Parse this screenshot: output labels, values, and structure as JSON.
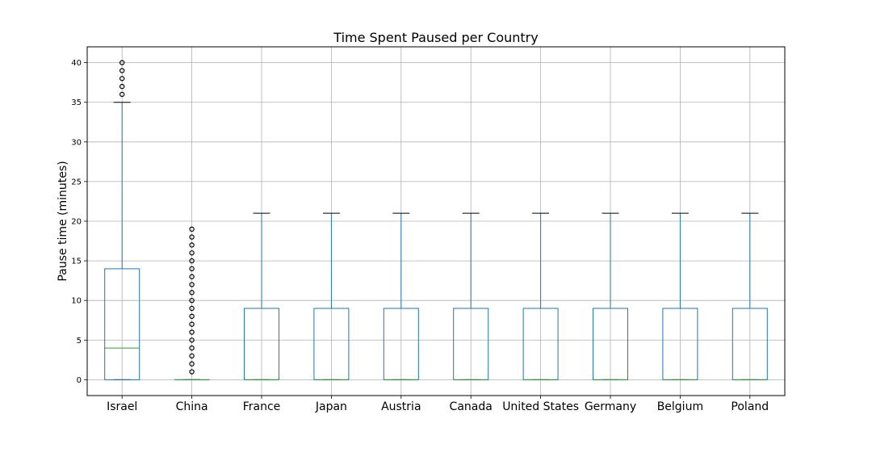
{
  "chart_data": {
    "type": "box",
    "title": "Time Spent Paused per Country",
    "xlabel": "",
    "ylabel": "Pause time (minutes)",
    "ylim": [
      -2,
      42
    ],
    "yticks": [
      0,
      5,
      10,
      15,
      20,
      25,
      30,
      35,
      40
    ],
    "grid": true,
    "colors": {
      "box": "#1f77b4",
      "median": "#2ca02c",
      "cap": "#000000",
      "flier": "#000000",
      "grid": "#b0b0b0"
    },
    "categories": [
      "Israel",
      "China",
      "France",
      "Japan",
      "Austria",
      "Canada",
      "United States",
      "Germany",
      "Belgium",
      "Poland"
    ],
    "boxes": [
      {
        "whislo": 0,
        "q1": 0,
        "med": 4,
        "q3": 14,
        "whishi": 35,
        "fliers": [
          36,
          37,
          38,
          39,
          40
        ]
      },
      {
        "whislo": 0,
        "q1": 0,
        "med": 0,
        "q3": 0,
        "whishi": 0,
        "fliers": [
          1,
          2,
          3,
          4,
          5,
          6,
          7,
          8,
          9,
          10,
          11,
          12,
          13,
          14,
          15,
          16,
          17,
          18,
          19
        ]
      },
      {
        "whislo": 0,
        "q1": 0,
        "med": 0,
        "q3": 9,
        "whishi": 21,
        "fliers": []
      },
      {
        "whislo": 0,
        "q1": 0,
        "med": 0,
        "q3": 9,
        "whishi": 21,
        "fliers": []
      },
      {
        "whislo": 0,
        "q1": 0,
        "med": 0,
        "q3": 9,
        "whishi": 21,
        "fliers": []
      },
      {
        "whislo": 0,
        "q1": 0,
        "med": 0,
        "q3": 9,
        "whishi": 21,
        "fliers": []
      },
      {
        "whislo": 0,
        "q1": 0,
        "med": 0,
        "q3": 9,
        "whishi": 21,
        "fliers": []
      },
      {
        "whislo": 0,
        "q1": 0,
        "med": 0,
        "q3": 9,
        "whishi": 21,
        "fliers": []
      },
      {
        "whislo": 0,
        "q1": 0,
        "med": 0,
        "q3": 9,
        "whishi": 21,
        "fliers": []
      },
      {
        "whislo": 0,
        "q1": 0,
        "med": 0,
        "q3": 9,
        "whishi": 21,
        "fliers": []
      }
    ]
  }
}
